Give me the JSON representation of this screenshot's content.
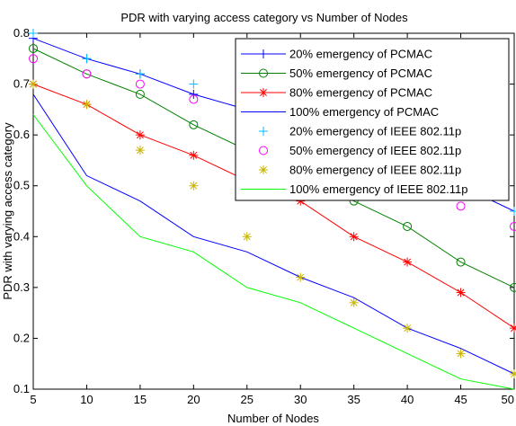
{
  "chart_data": {
    "type": "line",
    "title": "PDR with varying access category vs Number of Nodes",
    "xlabel": "Number of Nodes",
    "ylabel": "PDR with varying access category",
    "xlim": [
      5,
      50
    ],
    "ylim": [
      0.1,
      0.8
    ],
    "x_ticks": [
      "5",
      "10",
      "15",
      "20",
      "25",
      "30",
      "35",
      "40",
      "45",
      "50"
    ],
    "y_ticks": [
      "0.1",
      "0.2",
      "0.3",
      "0.4",
      "0.5",
      "0.6",
      "0.7",
      "0.8"
    ],
    "grid": false,
    "legend_position": "top-right",
    "x": [
      5,
      10,
      15,
      20,
      25,
      30,
      35,
      40,
      45,
      50
    ],
    "series": [
      {
        "name": "20% emergency of PCMAC",
        "color": "#0000ff",
        "line": true,
        "marker": "plus",
        "values": [
          0.79,
          0.75,
          0.72,
          0.68,
          0.65,
          0.62,
          0.59,
          0.55,
          0.5,
          0.45
        ]
      },
      {
        "name": "50% emergency of PCMAC",
        "color": "#008000",
        "line": true,
        "marker": "circle",
        "values": [
          0.77,
          0.72,
          0.68,
          0.62,
          0.57,
          0.52,
          0.47,
          0.42,
          0.35,
          0.3
        ]
      },
      {
        "name": "80% emergency of PCMAC",
        "color": "#ff0000",
        "line": true,
        "marker": "star",
        "values": [
          0.7,
          0.66,
          0.6,
          0.56,
          0.51,
          0.47,
          0.4,
          0.35,
          0.29,
          0.22
        ]
      },
      {
        "name": "100% emergency of PCMAC",
        "color": "#0000ff",
        "line": true,
        "marker": "none",
        "values": [
          0.68,
          0.52,
          0.47,
          0.4,
          0.37,
          0.32,
          0.28,
          0.22,
          0.18,
          0.13
        ]
      },
      {
        "name": "20% emergency of IEEE 802.11p",
        "color": "#00bfff",
        "line": false,
        "marker": "plus",
        "values": [
          0.8,
          0.75,
          0.72,
          0.7,
          0.65,
          0.62,
          0.59,
          0.55,
          0.5,
          0.45
        ]
      },
      {
        "name": "50% emergency of IEEE 802.11p",
        "color": "#ff00ff",
        "line": false,
        "marker": "circle",
        "values": [
          0.75,
          0.72,
          0.7,
          0.67,
          0.62,
          0.58,
          0.54,
          0.5,
          0.46,
          0.42
        ]
      },
      {
        "name": "80% emergency of IEEE 802.11p",
        "color": "#c8b400",
        "line": false,
        "marker": "star",
        "values": [
          0.7,
          0.66,
          0.57,
          0.5,
          0.4,
          0.32,
          0.27,
          0.22,
          0.17,
          0.13
        ]
      },
      {
        "name": "100% emergency of IEEE 802.11p",
        "color": "#00ff00",
        "line": true,
        "marker": "none",
        "values": [
          0.64,
          0.5,
          0.4,
          0.37,
          0.3,
          0.27,
          0.22,
          0.17,
          0.12,
          0.1
        ]
      }
    ]
  }
}
